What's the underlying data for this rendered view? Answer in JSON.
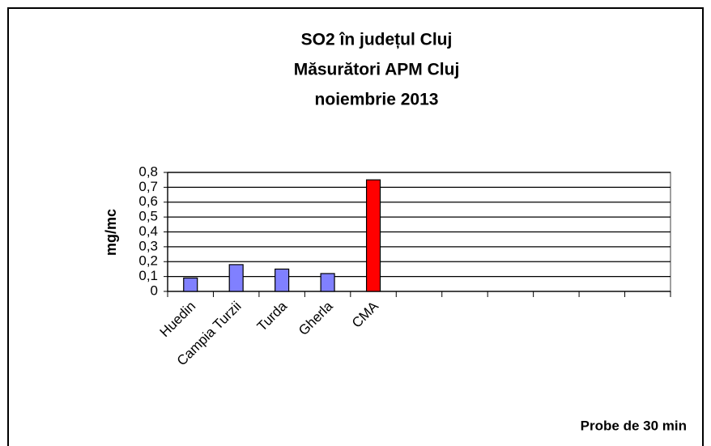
{
  "chart_data": {
    "type": "bar",
    "title": [
      "SO2 în județul Cluj",
      "Măsurători APM Cluj",
      "noiembrie 2013"
    ],
    "ylabel": "mg/mc",
    "annotation": "Probe de 30 min",
    "categories": [
      "Huedin",
      "Campia Turzii",
      "Turda",
      "Gherla",
      "CMA",
      null,
      null,
      null,
      null,
      null,
      null
    ],
    "values": [
      0.09,
      0.18,
      0.15,
      0.12,
      0.75,
      null,
      null,
      null,
      null,
      null,
      null
    ],
    "colors": [
      "#8080ff",
      "#8080ff",
      "#8080ff",
      "#8080ff",
      "#ff0000",
      null,
      null,
      null,
      null,
      null,
      null
    ],
    "ylim": [
      0,
      0.8
    ],
    "yticks": [
      0,
      {
        "value": 0.1,
        "label": "0,1"
      },
      {
        "value": 0.2,
        "label": "0,2"
      },
      {
        "value": 0.3,
        "label": "0,3"
      },
      {
        "value": 0.4,
        "label": "0,4"
      },
      {
        "value": 0.5,
        "label": "0,5"
      },
      {
        "value": 0.6,
        "label": "0,6"
      },
      {
        "value": 0.7,
        "label": "0,7"
      },
      {
        "value": 0.8,
        "label": "0,8"
      }
    ],
    "grid": true
  }
}
